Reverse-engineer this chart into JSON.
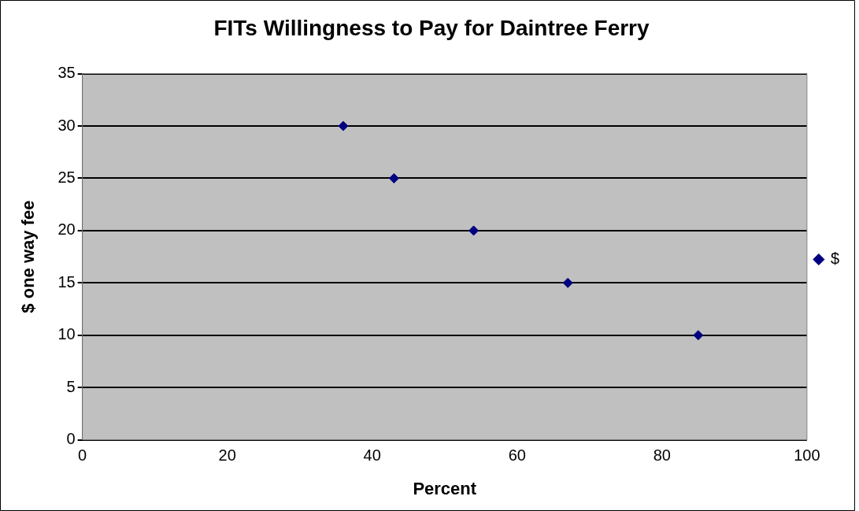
{
  "chart_data": {
    "type": "scatter",
    "title": "FITs Willingness to Pay for Daintree Ferry",
    "xlabel": "Percent",
    "ylabel": "$ one way fee",
    "x": [
      36,
      43,
      54,
      67,
      85
    ],
    "series": [
      {
        "name": "$",
        "color": "#000080",
        "values": [
          30,
          25,
          20,
          15,
          10
        ]
      }
    ],
    "xlim": [
      0,
      100
    ],
    "xticks": [
      0,
      20,
      40,
      60,
      80,
      100
    ],
    "ylim": [
      0,
      35
    ],
    "yticks": [
      0,
      5,
      10,
      15,
      20,
      25,
      30,
      35
    ],
    "grid": "y",
    "legend": "right",
    "marker": "diamond"
  }
}
